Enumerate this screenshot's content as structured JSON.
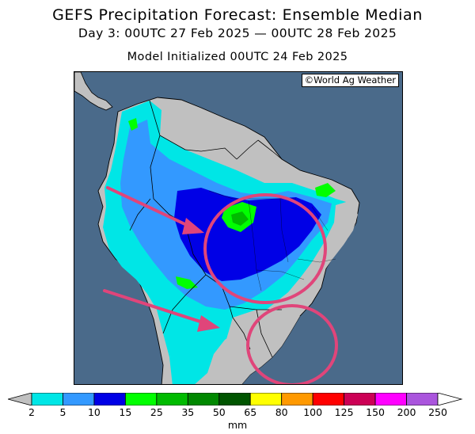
{
  "header": {
    "title": "GEFS Precipitation Forecast: Ensemble Median",
    "period": "Day 3: 00UTC 27 Feb 2025 — 00UTC 28 Feb 2025",
    "init": "Model Initialized 00UTC 24 Feb 2025"
  },
  "map": {
    "credit": "©World Ag Weather",
    "region": "South America",
    "ocean_color": "#4a6a8a",
    "land_color": "#c0c0c0",
    "annotations": [
      {
        "type": "arrow",
        "color": "#e0457a",
        "points_to": "central Brazil"
      },
      {
        "type": "circle",
        "color": "#e0457a",
        "highlights": "central Brazil"
      },
      {
        "type": "arrow",
        "color": "#e0457a",
        "points_to": "southern Brazil"
      },
      {
        "type": "circle",
        "color": "#e0457a",
        "highlights": "southern Brazil"
      }
    ]
  },
  "legend": {
    "unit": "mm",
    "ticks": [
      "2",
      "5",
      "10",
      "15",
      "25",
      "35",
      "50",
      "65",
      "80",
      "100",
      "125",
      "150",
      "200",
      "250"
    ],
    "colors": [
      "#00e6e6",
      "#3399ff",
      "#0000e6",
      "#00ff00",
      "#00bb00",
      "#008800",
      "#005500",
      "#ffff00",
      "#ff9900",
      "#ff0000",
      "#cc0055",
      "#ff00ff",
      "#aa55dd"
    ]
  }
}
